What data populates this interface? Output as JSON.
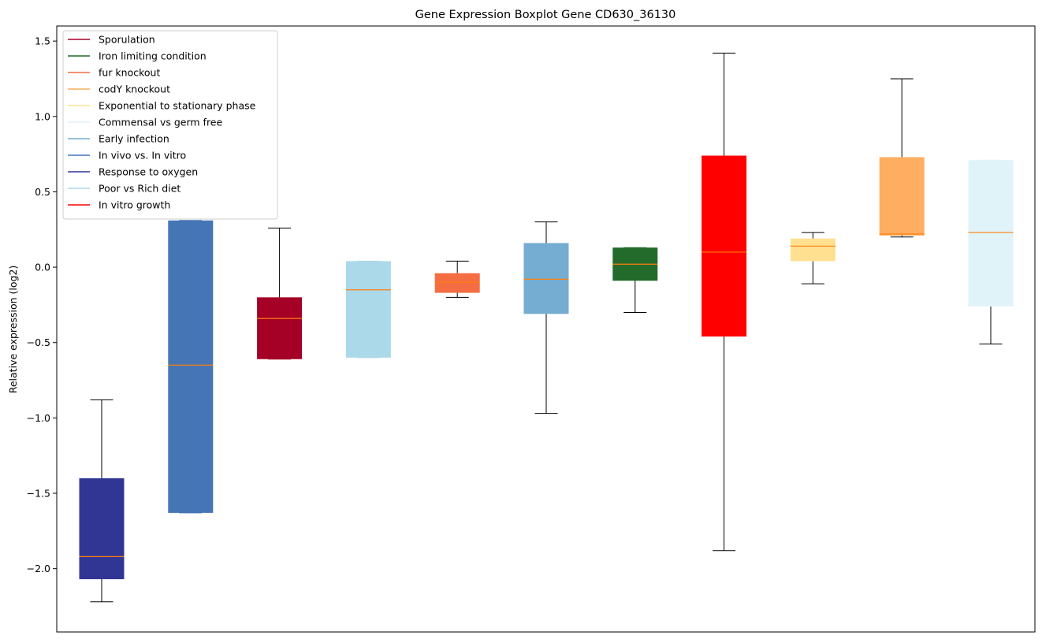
{
  "chart_data": {
    "type": "boxplot",
    "title": "Gene Expression Boxplot Gene CD630_36130",
    "xlabel": "",
    "ylabel": "Relative expression (log2)",
    "ylim": [
      -2.42,
      1.6
    ],
    "yticks": [
      1.5,
      1.0,
      0.5,
      0.0,
      -0.5,
      -1.0,
      -1.5,
      -2.0
    ],
    "ytick_labels": [
      "1.5",
      "1.0",
      "0.5",
      "0.0",
      "−0.5",
      "−1.0",
      "−1.5",
      "−2.0"
    ],
    "legend_position": "upper-left",
    "legend": [
      {
        "label": "Sporulation",
        "color": "#a50026"
      },
      {
        "label": "Iron limiting condition",
        "color": "#226b2a"
      },
      {
        "label": "fur knockout",
        "color": "#f46d43"
      },
      {
        "label": "codY knockout",
        "color": "#fdae61"
      },
      {
        "label": "Exponential to stationary phase",
        "color": "#fee090"
      },
      {
        "label": "Commensal vs germ free",
        "color": "#e0f3f8"
      },
      {
        "label": "Early infection",
        "color": "#74add1"
      },
      {
        "label": "In vivo vs. In vitro",
        "color": "#4575b4"
      },
      {
        "label": "Response to oxygen",
        "color": "#313695"
      },
      {
        "label": "Poor vs Rich diet",
        "color": "#abd9e9"
      },
      {
        "label": "In vitro growth",
        "color": "#ff0000"
      }
    ],
    "boxes": [
      {
        "group": "Response to oxygen",
        "color": "#313695",
        "whisker_low": -2.22,
        "q1": -2.07,
        "median": -1.92,
        "q3": -1.4,
        "whisker_high": -0.88
      },
      {
        "group": "In vivo vs. In vitro",
        "color": "#4575b4",
        "whisker_low": -1.63,
        "q1": -1.63,
        "median": -0.65,
        "q3": 0.31,
        "whisker_high": 0.31
      },
      {
        "group": "Sporulation",
        "color": "#a50026",
        "whisker_low": -0.61,
        "q1": -0.61,
        "median": -0.34,
        "q3": -0.2,
        "whisker_high": 0.26
      },
      {
        "group": "Poor vs Rich diet",
        "color": "#abd9e9",
        "whisker_low": -0.6,
        "q1": -0.6,
        "median": -0.15,
        "q3": 0.04,
        "whisker_high": 0.04
      },
      {
        "group": "fur knockout",
        "color": "#f46d43",
        "whisker_low": -0.2,
        "q1": -0.17,
        "median": -0.1,
        "q3": -0.04,
        "whisker_high": 0.04
      },
      {
        "group": "Early infection",
        "color": "#74add1",
        "whisker_low": -0.97,
        "q1": -0.31,
        "median": -0.08,
        "q3": 0.16,
        "whisker_high": 0.3
      },
      {
        "group": "Iron limiting condition",
        "color": "#226b2a",
        "whisker_low": -0.3,
        "q1": -0.09,
        "median": 0.02,
        "q3": 0.13,
        "whisker_high": 0.13
      },
      {
        "group": "In vitro growth",
        "color": "#ff0000",
        "whisker_low": -1.88,
        "q1": -0.46,
        "median": 0.1,
        "q3": 0.74,
        "whisker_high": 1.42
      },
      {
        "group": "Exponential to stationary phase",
        "color": "#fee090",
        "whisker_low": -0.11,
        "q1": 0.04,
        "median": 0.14,
        "q3": 0.19,
        "whisker_high": 0.23
      },
      {
        "group": "codY knockout",
        "color": "#fdae61",
        "whisker_low": 0.2,
        "q1": 0.21,
        "median": 0.22,
        "q3": 0.73,
        "whisker_high": 1.25
      },
      {
        "group": "Commensal vs germ free",
        "color": "#e0f3f8",
        "whisker_low": -0.51,
        "q1": -0.26,
        "median": 0.23,
        "q3": 0.71,
        "whisker_high": 0.71
      }
    ],
    "median_color": "#ff7f0e",
    "whisker_color": "#000000"
  }
}
